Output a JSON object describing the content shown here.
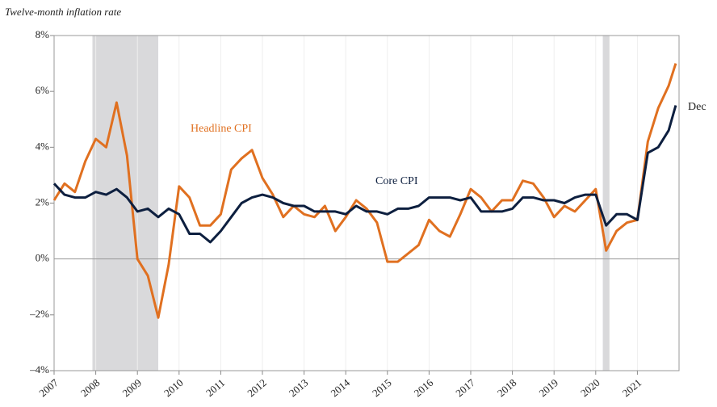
{
  "chart_data": {
    "type": "line",
    "axis_title": "Twelve-month inflation rate",
    "x": [
      2007.0,
      2007.25,
      2007.5,
      2007.75,
      2008.0,
      2008.25,
      2008.5,
      2008.75,
      2009.0,
      2009.25,
      2009.5,
      2009.75,
      2010.0,
      2010.25,
      2010.5,
      2010.75,
      2011.0,
      2011.25,
      2011.5,
      2011.75,
      2012.0,
      2012.25,
      2012.5,
      2012.75,
      2013.0,
      2013.25,
      2013.5,
      2013.75,
      2014.0,
      2014.25,
      2014.5,
      2014.75,
      2015.0,
      2015.25,
      2015.5,
      2015.75,
      2016.0,
      2016.25,
      2016.5,
      2016.75,
      2017.0,
      2017.25,
      2017.5,
      2017.75,
      2018.0,
      2018.25,
      2018.5,
      2018.75,
      2019.0,
      2019.25,
      2019.5,
      2019.75,
      2020.0,
      2020.25,
      2020.5,
      2020.75,
      2021.0,
      2021.25,
      2021.5,
      2021.75,
      2021.92
    ],
    "series": [
      {
        "name": "Headline CPI",
        "color": "#e07020",
        "values": [
          2.1,
          2.7,
          2.4,
          3.5,
          4.3,
          4.0,
          5.6,
          3.7,
          0.0,
          -0.6,
          -2.1,
          -0.2,
          2.6,
          2.2,
          1.2,
          1.2,
          1.6,
          3.2,
          3.6,
          3.9,
          2.9,
          2.3,
          1.5,
          1.9,
          1.6,
          1.5,
          1.9,
          1.0,
          1.5,
          2.1,
          1.8,
          1.3,
          -0.1,
          -0.1,
          0.2,
          0.5,
          1.4,
          1.0,
          0.8,
          1.6,
          2.5,
          2.2,
          1.7,
          2.1,
          2.1,
          2.8,
          2.7,
          2.2,
          1.5,
          1.9,
          1.7,
          2.1,
          2.5,
          0.3,
          1.0,
          1.3,
          1.4,
          4.2,
          5.4,
          6.2,
          7.0
        ]
      },
      {
        "name": "Core CPI",
        "color": "#0d1f3f",
        "values": [
          2.7,
          2.3,
          2.2,
          2.2,
          2.4,
          2.3,
          2.5,
          2.2,
          1.7,
          1.8,
          1.5,
          1.8,
          1.6,
          0.9,
          0.9,
          0.6,
          1.0,
          1.5,
          2.0,
          2.2,
          2.3,
          2.2,
          2.0,
          1.9,
          1.9,
          1.7,
          1.7,
          1.7,
          1.6,
          1.9,
          1.7,
          1.7,
          1.6,
          1.8,
          1.8,
          1.9,
          2.2,
          2.2,
          2.2,
          2.1,
          2.2,
          1.7,
          1.7,
          1.7,
          1.8,
          2.2,
          2.2,
          2.1,
          2.1,
          2.0,
          2.2,
          2.3,
          2.3,
          1.2,
          1.6,
          1.6,
          1.4,
          3.8,
          4.0,
          4.6,
          5.5
        ]
      }
    ],
    "annotations": [
      "Dec"
    ],
    "recessions": [
      [
        2007.92,
        2009.5
      ],
      [
        2020.17,
        2020.33
      ]
    ],
    "xlim": [
      2007,
      2022
    ],
    "xticks": [
      2007,
      2008,
      2009,
      2010,
      2011,
      2012,
      2013,
      2014,
      2015,
      2016,
      2017,
      2018,
      2019,
      2020,
      2021
    ],
    "ylim": [
      -4,
      8
    ],
    "yticks": [
      {
        "value": -4,
        "label": "–4%"
      },
      {
        "value": -2,
        "label": "–2%"
      },
      {
        "value": 0,
        "label": "0%"
      },
      {
        "value": 2,
        "label": "2%"
      },
      {
        "value": 4,
        "label": "4%"
      },
      {
        "value": 6,
        "label": "6%"
      },
      {
        "value": 8,
        "label": "8%"
      }
    ],
    "grid": true
  }
}
